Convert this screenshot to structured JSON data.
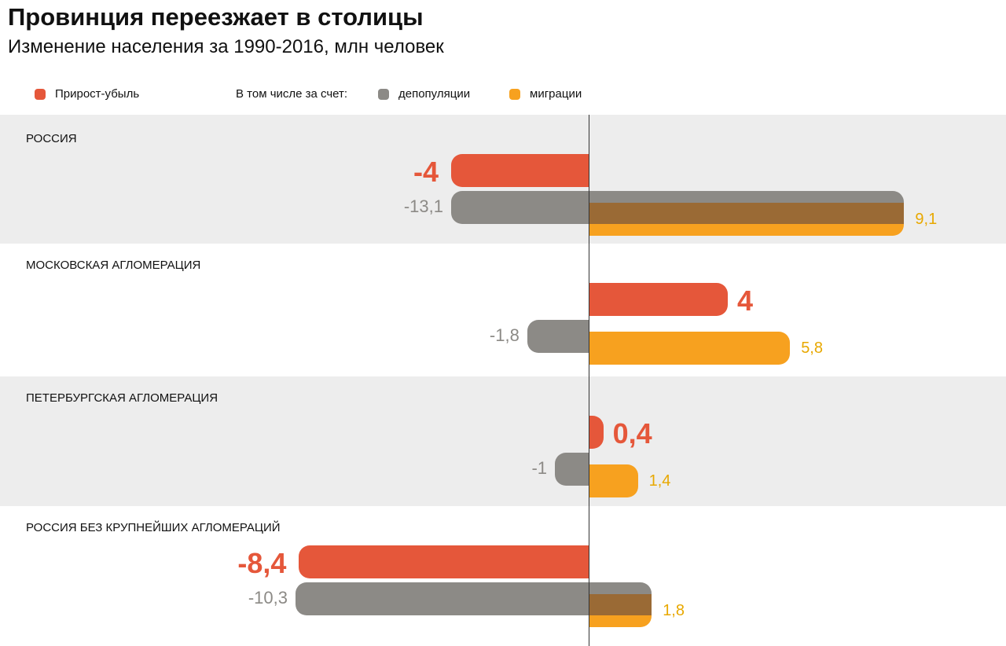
{
  "title": "Провинция переезжает в столицы",
  "subtitle": "Изменение населения за 1990-2016, млн человек",
  "legend": {
    "net": "Прирост-убыль",
    "prefix": "В том числе за счет:",
    "depop": "депопуляции",
    "migr": "миграции"
  },
  "colors": {
    "net": "#e5573a",
    "depop": "#8c8a86",
    "migr": "#f7a11f",
    "overlap": "#9a6a35",
    "migr_text": "#e8a800",
    "depop_text": "#8c8a86"
  },
  "chart_data": {
    "type": "bar",
    "title": "Провинция переезжает в столицы",
    "unit": "млн человек",
    "series_names": [
      "Прирост-убыль",
      "депопуляции",
      "миграции"
    ],
    "rows": [
      {
        "name": "РОССИЯ",
        "net": -4,
        "depop": -13.1,
        "migr": 9.1,
        "net_label": "-4",
        "depop_label": "-13,1",
        "migr_label": "9,1"
      },
      {
        "name": "МОСКОВСКАЯ АГЛОМЕРАЦИЯ",
        "net": 4,
        "depop": -1.8,
        "migr": 5.8,
        "net_label": "4",
        "depop_label": "-1,8",
        "migr_label": "5,8"
      },
      {
        "name": "ПЕТЕРБУРГСКАЯ АГЛОМЕРАЦИЯ",
        "net": 0.4,
        "depop": -1,
        "migr": 1.4,
        "net_label": "0,4",
        "depop_label": "-1",
        "migr_label": "1,4"
      },
      {
        "name": "РОССИЯ БЕЗ КРУПНЕЙШИХ АГЛОМЕРАЦИЙ",
        "net": -8.4,
        "depop": -10.3,
        "migr": 1.8,
        "net_label": "-8,4",
        "depop_label": "-10,3",
        "migr_label": "1,8"
      }
    ]
  }
}
